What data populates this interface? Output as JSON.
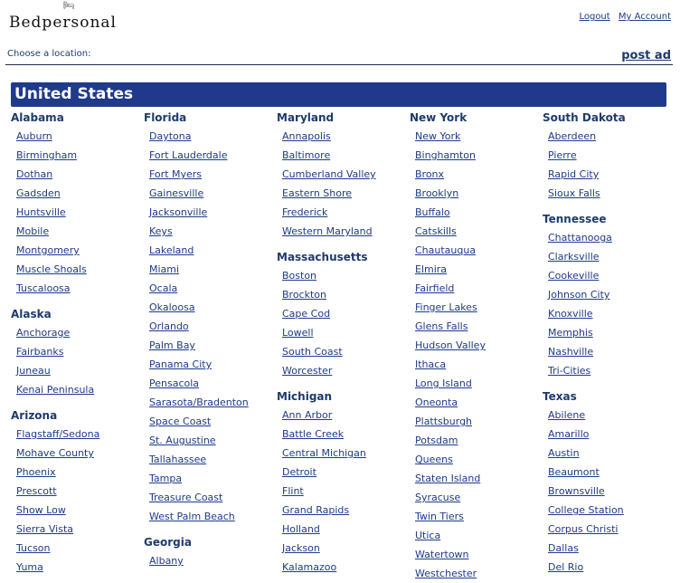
{
  "header": {
    "logo": "Bedpersonal",
    "logout": "Logout",
    "my_account": "My Account"
  },
  "subheader": {
    "choose": "Choose a location:",
    "post_ad": "post ad"
  },
  "country": "United States",
  "columns": [
    [
      {
        "state": "Alabama",
        "cities": [
          "Auburn",
          "Birmingham",
          "Dothan",
          "Gadsden",
          "Huntsville",
          "Mobile",
          "Montgomery",
          "Muscle Shoals",
          "Tuscaloosa"
        ]
      },
      {
        "state": "Alaska",
        "cities": [
          "Anchorage",
          "Fairbanks",
          "Juneau",
          "Kenai Peninsula"
        ]
      },
      {
        "state": "Arizona",
        "cities": [
          "Flagstaff/Sedona",
          "Mohave County",
          "Phoenix",
          "Prescott",
          "Show Low",
          "Sierra Vista",
          "Tucson",
          "Yuma"
        ]
      }
    ],
    [
      {
        "state": "Florida",
        "cities": [
          "Daytona",
          "Fort Lauderdale",
          "Fort Myers",
          "Gainesville",
          "Jacksonville",
          "Keys",
          "Lakeland",
          "Miami",
          "Ocala",
          "Okaloosa",
          "Orlando",
          "Palm Bay",
          "Panama City",
          "Pensacola",
          "Sarasota/Bradenton",
          "Space Coast",
          "St. Augustine",
          "Tallahassee",
          "Tampa",
          "Treasure Coast",
          "West Palm Beach"
        ]
      },
      {
        "state": "Georgia",
        "cities": [
          "Albany"
        ]
      }
    ],
    [
      {
        "state": "Maryland",
        "cities": [
          "Annapolis",
          "Baltimore",
          "Cumberland Valley",
          "Eastern Shore",
          "Frederick",
          "Western Maryland"
        ]
      },
      {
        "state": "Massachusetts",
        "cities": [
          "Boston",
          "Brockton",
          "Cape Cod",
          "Lowell",
          "South Coast",
          "Worcester"
        ]
      },
      {
        "state": "Michigan",
        "cities": [
          "Ann Arbor",
          "Battle Creek",
          "Central Michigan",
          "Detroit",
          "Flint",
          "Grand Rapids",
          "Holland",
          "Jackson",
          "Kalamazoo"
        ]
      }
    ],
    [
      {
        "state": "New York",
        "cities": [
          "New York",
          "Binghamton",
          "Bronx",
          "Brooklyn",
          "Buffalo",
          "Catskills",
          "Chautauqua",
          "Elmira",
          "Fairfield",
          "Finger Lakes",
          "Glens Falls",
          "Hudson Valley",
          "Ithaca",
          "Long Island",
          "Oneonta",
          "Plattsburgh",
          "Potsdam",
          "Queens",
          "Staten Island",
          "Syracuse",
          "Twin Tiers",
          "Utica",
          "Watertown",
          "Westchester"
        ]
      }
    ],
    [
      {
        "state": "South Dakota",
        "cities": [
          "Aberdeen",
          "Pierre",
          "Rapid City",
          "Sioux Falls"
        ]
      },
      {
        "state": "Tennessee",
        "cities": [
          "Chattanooga",
          "Clarksville",
          "Cookeville",
          "Johnson City",
          "Knoxville",
          "Memphis",
          "Nashville",
          "Tri-Cities"
        ]
      },
      {
        "state": "Texas",
        "cities": [
          "Abilene",
          "Amarillo",
          "Austin",
          "Beaumont",
          "Brownsville",
          "College Station",
          "Corpus Christi",
          "Dallas",
          "Del Rio"
        ]
      }
    ]
  ]
}
